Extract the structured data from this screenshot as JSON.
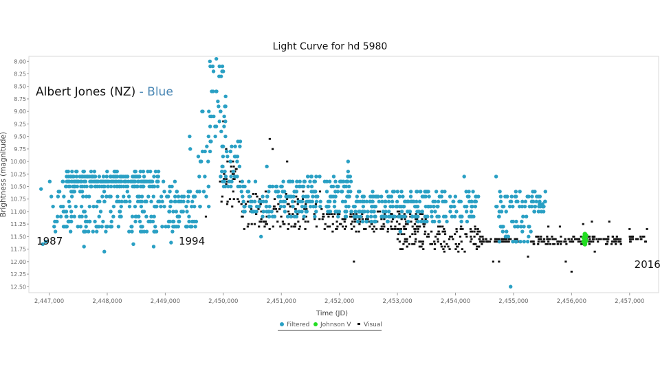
{
  "chart_data": {
    "type": "scatter",
    "title": "Light Curve for hd 5980",
    "xlabel": "Time (JD)",
    "ylabel": "Brightness (magnitude)",
    "xlim": [
      2446650,
      2457500
    ],
    "ylim": [
      12.5,
      7.9
    ],
    "y_inverted": true,
    "x_ticks": [
      "2,447,000",
      "2,448,000",
      "2,449,000",
      "2,450,000",
      "2,451,000",
      "2,452,000",
      "2,453,000",
      "2,454,000",
      "2,455,000",
      "2,456,000",
      "2,457,000"
    ],
    "x_tick_values": [
      2447000,
      2448000,
      2449000,
      2450000,
      2451000,
      2452000,
      2453000,
      2454000,
      2455000,
      2456000,
      2457000
    ],
    "y_ticks": [
      "8.00",
      "8.25",
      "8.50",
      "8.75",
      "9.00",
      "9.25",
      "9.50",
      "9.75",
      "10.00",
      "10.25",
      "10.50",
      "10.75",
      "11.00",
      "11.25",
      "11.50",
      "11.75",
      "12.00",
      "12.25",
      "12.50"
    ],
    "y_tick_values": [
      8.0,
      8.25,
      8.5,
      8.75,
      9.0,
      9.25,
      9.5,
      9.75,
      10.0,
      10.25,
      10.5,
      10.75,
      11.0,
      11.25,
      11.5,
      11.75,
      12.0,
      12.25,
      12.5
    ],
    "legend": {
      "position": "bottom-center",
      "entries": [
        {
          "name": "Filtered",
          "color": "#2aa0c4",
          "marker": "circle"
        },
        {
          "name": "Johnson V",
          "color": "#22dd22",
          "marker": "circle"
        },
        {
          "name": "Visual",
          "color": "#111111",
          "marker": "square"
        }
      ]
    },
    "series": [
      {
        "name": "Filtered",
        "color": "#2aa0c4",
        "bands": [
          {
            "x": [
              2447000,
              2449200
            ],
            "y": [
              10.4,
              11.45
            ]
          },
          {
            "x": [
              2447300,
              2448900
            ],
            "y": [
              10.2,
              10.5
            ]
          },
          {
            "x": [
              2449200,
              2449550
            ],
            "y": [
              10.6,
              11.3
            ]
          },
          {
            "x": [
              2449550,
              2449800
            ],
            "y": [
              8.9,
              11.0
            ]
          },
          {
            "x": [
              2449750,
              2450050
            ],
            "y": [
              8.0,
              9.6
            ]
          },
          {
            "x": [
              2449950,
              2450300
            ],
            "y": [
              9.6,
              10.5
            ]
          },
          {
            "x": [
              2450300,
              2452200
            ],
            "y": [
              10.3,
              11.1
            ]
          },
          {
            "x": [
              2452200,
              2454400
            ],
            "y": [
              10.6,
              11.2
            ]
          },
          {
            "x": [
              2454700,
              2455300
            ],
            "y": [
              10.6,
              11.6
            ]
          },
          {
            "x": [
              2455300,
              2455550
            ],
            "y": [
              10.6,
              11.0
            ]
          }
        ],
        "points": [
          {
            "x": 2446860,
            "y": 10.55
          },
          {
            "x": 2446890,
            "y": 11.65
          },
          {
            "x": 2446940,
            "y": 11.6
          },
          {
            "x": 2447600,
            "y": 11.7
          },
          {
            "x": 2447950,
            "y": 11.8
          },
          {
            "x": 2448450,
            "y": 11.65
          },
          {
            "x": 2448800,
            "y": 11.7
          },
          {
            "x": 2449100,
            "y": 11.62
          },
          {
            "x": 2449420,
            "y": 9.5
          },
          {
            "x": 2449430,
            "y": 9.75
          },
          {
            "x": 2449880,
            "y": 7.95
          },
          {
            "x": 2450650,
            "y": 11.5
          },
          {
            "x": 2450750,
            "y": 10.1
          },
          {
            "x": 2451600,
            "y": 10.3
          },
          {
            "x": 2452150,
            "y": 10.0
          },
          {
            "x": 2452150,
            "y": 10.2
          },
          {
            "x": 2453050,
            "y": 11.4
          },
          {
            "x": 2454150,
            "y": 10.3
          },
          {
            "x": 2454700,
            "y": 10.3
          },
          {
            "x": 2454950,
            "y": 12.5
          },
          {
            "x": 2455050,
            "y": 11.6
          },
          {
            "x": 2455450,
            "y": 10.85
          },
          {
            "x": 2455500,
            "y": 10.85
          }
        ]
      },
      {
        "name": "Visual",
        "color": "#111111",
        "bands": [
          {
            "x": [
              2449900,
              2450300
            ],
            "y": [
              10.0,
              10.9
            ]
          },
          {
            "x": [
              2450300,
              2451700
            ],
            "y": [
              10.6,
              11.35
            ]
          },
          {
            "x": [
              2451700,
              2453500
            ],
            "y": [
              11.0,
              11.4
            ]
          },
          {
            "x": [
              2453000,
              2454500
            ],
            "y": [
              11.3,
              11.8
            ]
          },
          {
            "x": 2454400,
            "y_range": [
              11.55,
              11.6
            ],
            "to": 2455100
          },
          {
            "x": [
              2455300,
              2456900
            ],
            "y": [
              11.5,
              11.65
            ]
          },
          {
            "x": [
              2457000,
              2457300
            ],
            "y": [
              11.5,
              11.6
            ]
          }
        ],
        "points": [
          {
            "x": 2449700,
            "y": 11.1
          },
          {
            "x": 2450000,
            "y": 9.2
          },
          {
            "x": 2450050,
            "y": 9.75
          },
          {
            "x": 2450800,
            "y": 9.55
          },
          {
            "x": 2450850,
            "y": 9.75
          },
          {
            "x": 2451100,
            "y": 10.0
          },
          {
            "x": 2452250,
            "y": 12.0
          },
          {
            "x": 2453300,
            "y": 11.4
          },
          {
            "x": 2454650,
            "y": 12.0
          },
          {
            "x": 2454750,
            "y": 12.0
          },
          {
            "x": 2455250,
            "y": 11.9
          },
          {
            "x": 2455600,
            "y": 11.3
          },
          {
            "x": 2455800,
            "y": 11.3
          },
          {
            "x": 2455900,
            "y": 12.0
          },
          {
            "x": 2456000,
            "y": 12.2
          },
          {
            "x": 2456200,
            "y": 11.25
          },
          {
            "x": 2456350,
            "y": 11.2
          },
          {
            "x": 2456400,
            "y": 11.8
          },
          {
            "x": 2456650,
            "y": 11.2
          },
          {
            "x": 2456700,
            "y": 11.6
          },
          {
            "x": 2457000,
            "y": 11.35
          },
          {
            "x": 2457300,
            "y": 11.35
          }
        ]
      },
      {
        "name": "Johnson V",
        "color": "#22dd22",
        "points": [
          {
            "x": 2456230,
            "y": 11.45
          },
          {
            "x": 2456230,
            "y": 11.5
          },
          {
            "x": 2456230,
            "y": 11.55
          },
          {
            "x": 2456230,
            "y": 11.6
          },
          {
            "x": 2456230,
            "y": 11.65
          },
          {
            "x": 2456250,
            "y": 11.48
          },
          {
            "x": 2456250,
            "y": 11.58
          },
          {
            "x": 2456210,
            "y": 11.52
          },
          {
            "x": 2456210,
            "y": 11.6
          }
        ]
      }
    ],
    "annotations": {
      "observer_name": "Albert Jones (NZ)",
      "observer_sep": "-",
      "observer_color": "Blue",
      "years": [
        {
          "label": "1987",
          "x": 2446900,
          "y": 11.58
        },
        {
          "label": "1994",
          "x": 2449350,
          "y": 11.58
        },
        {
          "label": "2016",
          "x": 2457200,
          "y": 12.05
        }
      ]
    }
  }
}
